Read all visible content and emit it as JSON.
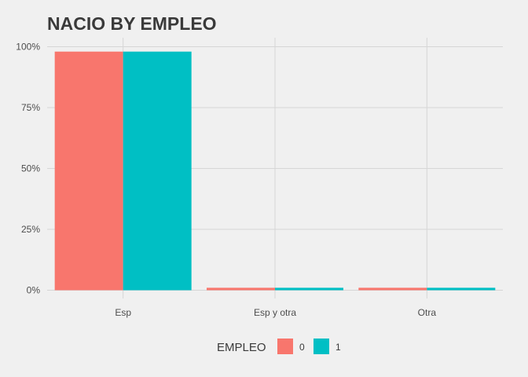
{
  "chart_data": {
    "type": "bar",
    "title": "NACIO BY EMPLEO",
    "xlabel": "",
    "ylabel": "",
    "categories": [
      "Esp",
      "Esp y otra",
      "Otra"
    ],
    "series": [
      {
        "name": "0",
        "values": [
          0.98,
          0.01,
          0.01
        ],
        "color": "#f8766d"
      },
      {
        "name": "1",
        "values": [
          0.98,
          0.01,
          0.01
        ],
        "color": "#00bfc4"
      }
    ],
    "ylim": [
      0,
      1
    ],
    "y_ticks": [
      {
        "value": 0,
        "label": "0%"
      },
      {
        "value": 0.25,
        "label": "25%"
      },
      {
        "value": 0.5,
        "label": "50%"
      },
      {
        "value": 0.75,
        "label": "75%"
      },
      {
        "value": 1,
        "label": "100%"
      }
    ],
    "grid": true,
    "legend": {
      "title": "EMPLEO",
      "position": "bottom"
    }
  }
}
